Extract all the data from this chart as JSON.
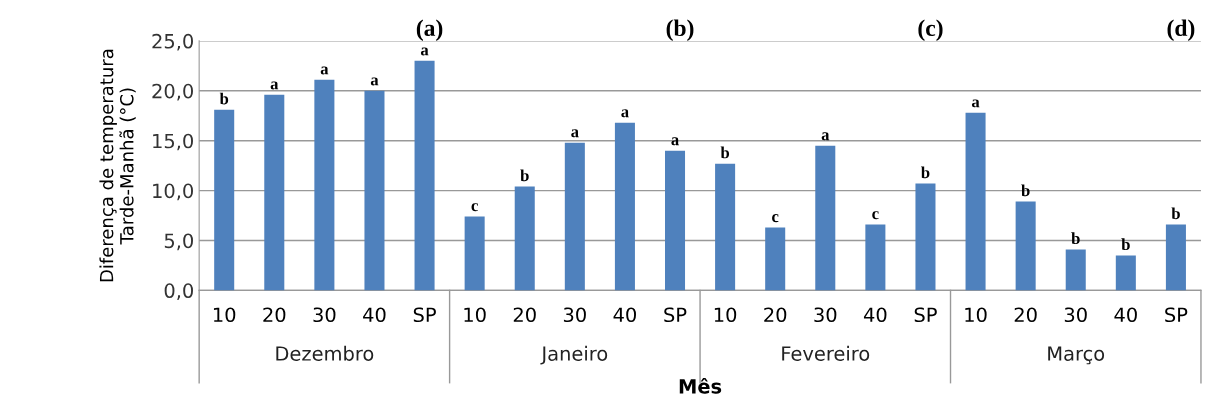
{
  "chart_data": {
    "type": "bar",
    "categories": [
      "10",
      "20",
      "30",
      "40",
      "SP",
      "10",
      "20",
      "30",
      "40",
      "SP",
      "10",
      "20",
      "30",
      "40",
      "SP",
      "10",
      "20",
      "30",
      "40",
      "SP"
    ],
    "values": [
      18.1,
      19.6,
      21.1,
      20.0,
      23.0,
      7.4,
      10.4,
      14.8,
      16.8,
      14.0,
      12.7,
      6.3,
      14.5,
      6.6,
      10.7,
      17.8,
      8.9,
      4.1,
      3.5,
      6.6
    ],
    "value_labels": [
      "b",
      "a",
      "a",
      "a",
      "a",
      "c",
      "b",
      "a",
      "a",
      "a",
      "b",
      "c",
      "a",
      "c",
      "b",
      "a",
      "b",
      "b",
      "b",
      "b"
    ],
    "color": "#4f81bd",
    "xlabel": "Mês",
    "ylabel": "Diferença de temperatura\nTarde-Manhã (°C)",
    "ylim": [
      0,
      25
    ],
    "yticks": [
      {
        "value": 0,
        "label": "0,0"
      },
      {
        "value": 5,
        "label": "5,0"
      },
      {
        "value": 10,
        "label": "10,0"
      },
      {
        "value": 15,
        "label": "15,0"
      },
      {
        "value": 20,
        "label": "20,0"
      },
      {
        "value": 25,
        "label": "25,0"
      }
    ],
    "grid": "y",
    "annotations": [
      "Dezembro",
      "Janeiro",
      "Fevereiro",
      "Março",
      "(a)",
      "(b)",
      "(c)",
      "(d)"
    ]
  }
}
